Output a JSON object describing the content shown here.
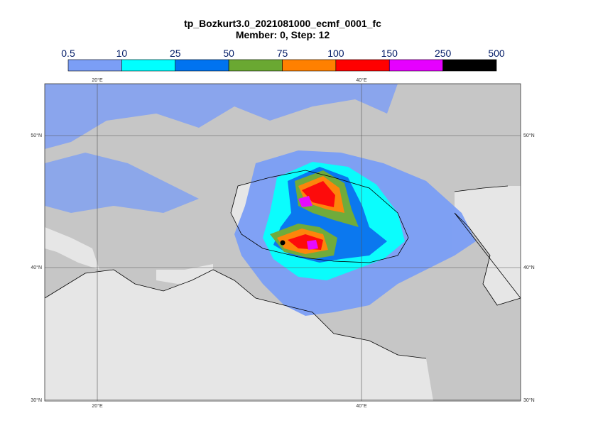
{
  "header": {
    "title": "tp_Bozkurt3.0_2021081000_ecmf_0001_fc",
    "subtitle": "Member: 0, Step: 12"
  },
  "colorbar": {
    "levels": [
      0.5,
      10,
      25,
      50,
      75,
      100,
      150,
      250,
      500
    ],
    "colors": [
      "#7b9ef6",
      "#00ffff",
      "#0073f0",
      "#6aa832",
      "#ff8000",
      "#ff0000",
      "#e600ff",
      "#000000"
    ]
  },
  "map": {
    "lon_labels": [
      "20°E",
      "40°E"
    ],
    "lat_labels": [
      "50°N",
      "40°N",
      "30°N"
    ]
  }
}
